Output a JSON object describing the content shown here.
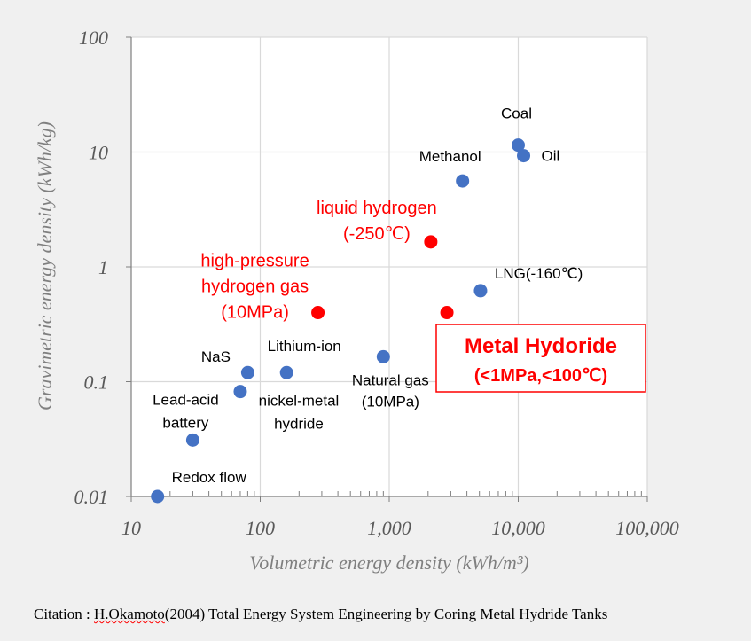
{
  "chart_data": {
    "type": "scatter",
    "title": "",
    "xlabel": "Volumetric energy density  (kWh/m³)",
    "ylabel": "Gravimetric energy density  (kWh/kg)",
    "xscale": "log",
    "yscale": "log",
    "xlim": [
      10,
      100000
    ],
    "ylim": [
      0.01,
      100
    ],
    "x_ticks": [
      "10",
      "100",
      "1,000",
      "10,000",
      "100,000"
    ],
    "y_ticks": [
      "0.01",
      "0.1",
      "1",
      "10",
      "100"
    ],
    "grid": true,
    "colors": {
      "conventional": "#4472c4",
      "hydrogen": "#ff0000",
      "grid": "#d9d9d9",
      "axis": "#7f7f7f"
    },
    "points": [
      {
        "name": "Coal",
        "label": [
          "Coal"
        ],
        "x": 10000,
        "y": 11.5,
        "group": "conventional"
      },
      {
        "name": "Oil",
        "label": [
          "Oil"
        ],
        "x": 11000,
        "y": 9.3,
        "group": "conventional"
      },
      {
        "name": "Methanol",
        "label": [
          "Methanol"
        ],
        "x": 3700,
        "y": 5.6,
        "group": "conventional"
      },
      {
        "name": "LNG(-160℃)",
        "label": [
          "LNG(-160℃)"
        ],
        "x": 5100,
        "y": 0.62,
        "group": "conventional"
      },
      {
        "name": "Natural gas (10MPa)",
        "label": [
          "Natural gas",
          "(10MPa)"
        ],
        "x": 900,
        "y": 0.165,
        "group": "conventional"
      },
      {
        "name": "Lithium-ion",
        "label": [
          "Lithium-ion"
        ],
        "x": 160,
        "y": 0.12,
        "group": "conventional"
      },
      {
        "name": "NaS",
        "label": [
          "NaS"
        ],
        "x": 80,
        "y": 0.12,
        "group": "conventional"
      },
      {
        "name": "nickel-metal hydride",
        "label": [
          "nickel-metal",
          "hydride"
        ],
        "x": 70,
        "y": 0.082,
        "group": "conventional"
      },
      {
        "name": "Lead-acid battery",
        "label": [
          "Lead-acid",
          "battery"
        ],
        "x": 30,
        "y": 0.031,
        "group": "conventional"
      },
      {
        "name": "Redox flow",
        "label": [
          "Redox flow"
        ],
        "x": 16,
        "y": 0.01,
        "group": "conventional"
      },
      {
        "name": "liquid hydrogen (-250℃)",
        "label": [
          "liquid hydrogen",
          "(-250℃)"
        ],
        "x": 2100,
        "y": 1.65,
        "group": "hydrogen"
      },
      {
        "name": "high-pressure hydrogen gas (10MPa)",
        "label": [
          "high-pressure",
          "hydrogen gas",
          "(10MPa)"
        ],
        "x": 280,
        "y": 0.4,
        "group": "hydrogen"
      },
      {
        "name": "Metal Hydoride",
        "label": [],
        "x": 2800,
        "y": 0.4,
        "group": "hydrogen"
      }
    ],
    "highlight": {
      "title": "Metal Hydoride",
      "subtitle": "(<1MPa,<100℃)"
    }
  },
  "citation": {
    "prefix": "Citation : ",
    "author": "H.Okamoto",
    "rest": "(2004) Total Energy System Engineering by Coring Metal Hydride Tanks"
  }
}
